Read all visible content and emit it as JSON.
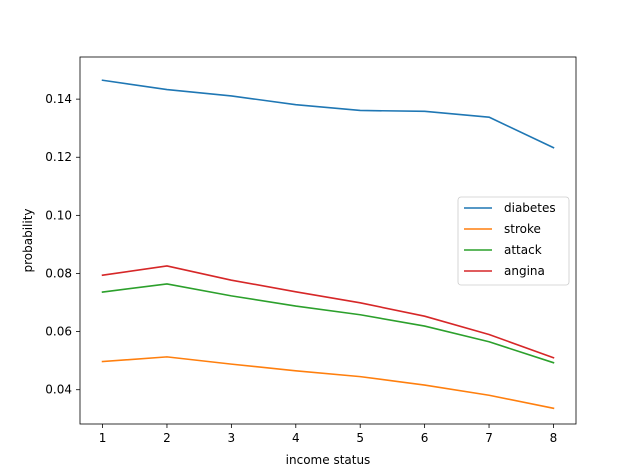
{
  "chart_data": {
    "type": "line",
    "title": "",
    "xlabel": "income status",
    "ylabel": "probability",
    "x": [
      1,
      2,
      3,
      4,
      5,
      6,
      7,
      8
    ],
    "xlim": [
      0.65,
      8.35
    ],
    "ylim": [
      0.0282,
      0.1545
    ],
    "xticks": [
      1,
      2,
      3,
      4,
      5,
      6,
      7,
      8
    ],
    "yticks": [
      0.04,
      0.06,
      0.08,
      0.1,
      0.12,
      0.14
    ],
    "ytick_labels": [
      "0.04",
      "0.06",
      "0.08",
      "0.10",
      "0.12",
      "0.14"
    ],
    "grid": false,
    "legend_position": "center-right",
    "series": [
      {
        "name": "diabetes",
        "color": "#1f77b4",
        "values": [
          0.1465,
          0.1433,
          0.1411,
          0.1381,
          0.1361,
          0.1358,
          0.1338,
          0.1233
        ]
      },
      {
        "name": "stroke",
        "color": "#ff7f0e",
        "values": [
          0.0497,
          0.0513,
          0.0488,
          0.0465,
          0.0445,
          0.0416,
          0.0381,
          0.0336
        ]
      },
      {
        "name": "attack",
        "color": "#2ca02c",
        "values": [
          0.0736,
          0.0764,
          0.0723,
          0.0688,
          0.0658,
          0.0619,
          0.0565,
          0.0493
        ]
      },
      {
        "name": "angina",
        "color": "#d62728",
        "values": [
          0.0794,
          0.0826,
          0.0777,
          0.0737,
          0.0699,
          0.0653,
          0.059,
          0.051
        ]
      }
    ]
  }
}
